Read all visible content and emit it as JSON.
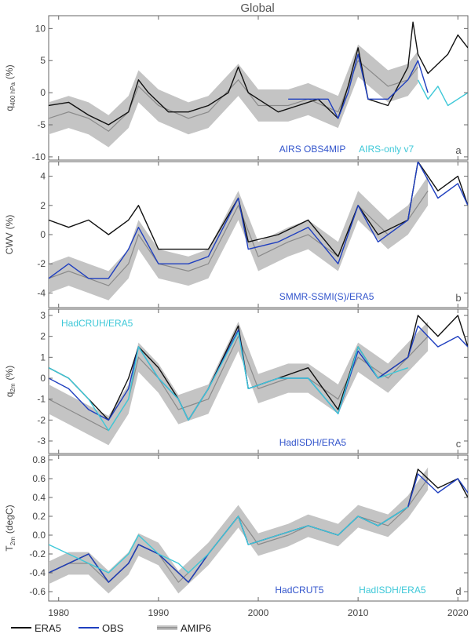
{
  "figure": {
    "title": "Global"
  },
  "colors": {
    "ERA5": "#111111",
    "OBS": "#1f3fbf",
    "OBS2": "#3ec8d8",
    "AMIP6": "#9a9a9a",
    "frame": "#666666"
  },
  "legend": [
    {
      "label": "ERA5",
      "color": "#111111",
      "style": "line"
    },
    {
      "label": "OBS",
      "color": "#1f3fbf",
      "style": "line"
    },
    {
      "label": "AMIP6",
      "color": "#9a9a9a",
      "style": "band"
    }
  ],
  "chart_data": [
    {
      "type": "line",
      "letter": "a",
      "ylabel_main": "q",
      "ylabel_sub": "400 hPa",
      "ylabel_unit": "(%)",
      "ylim": [
        -10.5,
        12
      ],
      "yticks": [
        -10,
        -5,
        0,
        5,
        10
      ],
      "xlim": [
        1979,
        2021
      ],
      "xticks": [
        1980,
        1990,
        2000,
        2010,
        2020
      ],
      "annotations": [
        {
          "text": "AIRS OBS4MIP",
          "color": "#3355cc",
          "pos": "bottom-mid"
        },
        {
          "text": "AIRS-only v7",
          "color": "#3ec8d8",
          "pos": "bottom-right"
        }
      ],
      "series": [
        {
          "name": "ERA5",
          "color": "#111111",
          "x": [
            1979,
            1981,
            1983,
            1985,
            1987,
            1988,
            1989,
            1991,
            1993,
            1995,
            1997,
            1998,
            1999,
            2000,
            2002,
            2004,
            2006,
            2008,
            2009,
            2010,
            2011,
            2013,
            2015,
            2015.5,
            2016,
            2017,
            2019,
            2020,
            2021
          ],
          "y": [
            -2,
            -1.5,
            -3.5,
            -5,
            -3,
            2,
            0,
            -3,
            -3,
            -2,
            0,
            4,
            0,
            -1,
            -3,
            -2,
            -1,
            -4,
            1,
            7,
            -1,
            -2,
            4,
            11,
            6,
            3,
            6,
            9,
            7
          ]
        },
        {
          "name": "OBS",
          "color": "#1f3fbf",
          "x": [
            2003,
            2005,
            2007,
            2008,
            2009,
            2010,
            2011,
            2013,
            2015,
            2016,
            2017
          ],
          "y": [
            -1,
            -1,
            -1,
            -4,
            0,
            6,
            -1,
            -1,
            2,
            5,
            0
          ]
        },
        {
          "name": "OBS2",
          "color": "#3ec8d8",
          "x": [
            2016,
            2017,
            2018,
            2019,
            2020,
            2021
          ],
          "y": [
            2,
            -1,
            1,
            -2,
            -1,
            0
          ]
        },
        {
          "name": "AMIP6",
          "color": "#9a9a9a",
          "band": 2.5,
          "x": [
            1979,
            1981,
            1983,
            1985,
            1987,
            1988,
            1990,
            1993,
            1995,
            1998,
            2000,
            2003,
            2005,
            2008,
            2010,
            2013,
            2015,
            2016
          ],
          "y": [
            -4,
            -3,
            -4,
            -6,
            -3,
            1,
            -2,
            -4,
            -3,
            2,
            -2,
            -2,
            -1,
            -3,
            5,
            1,
            2,
            4
          ]
        }
      ]
    },
    {
      "type": "line",
      "letter": "b",
      "ylabel_main": "CWV",
      "ylabel_sub": "",
      "ylabel_unit": "(%)",
      "ylim": [
        -5,
        5
      ],
      "yticks": [
        -4,
        -2,
        0,
        2,
        4
      ],
      "xlim": [
        1979,
        2021
      ],
      "xticks": [
        1980,
        1990,
        2000,
        2010,
        2020
      ],
      "annotations": [
        {
          "text": "SMMR-SSMI(S)/ERA5",
          "color": "#3355cc",
          "pos": "bottom-mid"
        }
      ],
      "series": [
        {
          "name": "ERA5",
          "color": "#111111",
          "x": [
            1979,
            1981,
            1983,
            1985,
            1987,
            1988,
            1990,
            1993,
            1995,
            1998,
            1999,
            2002,
            2005,
            2008,
            2010,
            2012,
            2015,
            2016,
            2018,
            2020,
            2021
          ],
          "y": [
            1,
            0.5,
            1,
            0,
            1,
            2,
            -1,
            -1,
            -1,
            2.5,
            -0.5,
            0,
            1,
            -1.5,
            2,
            0,
            1,
            5,
            3,
            4,
            2
          ]
        },
        {
          "name": "OBS",
          "color": "#1f3fbf",
          "x": [
            1979,
            1981,
            1983,
            1985,
            1987,
            1988,
            1990,
            1993,
            1995,
            1998,
            1999,
            2002,
            2005,
            2008,
            2010,
            2012,
            2015,
            2016,
            2018,
            2020,
            2021
          ],
          "y": [
            -3,
            -2,
            -3,
            -3,
            -1,
            0.5,
            -2,
            -2,
            -1.5,
            2.5,
            -1,
            -0.5,
            0.5,
            -2,
            2,
            -0.5,
            1,
            5,
            2.5,
            3.5,
            2
          ]
        },
        {
          "name": "AMIP6",
          "color": "#9a9a9a",
          "band": 1.0,
          "x": [
            1979,
            1981,
            1983,
            1985,
            1987,
            1988,
            1990,
            1993,
            1995,
            1998,
            2000,
            2003,
            2005,
            2008,
            2010,
            2013,
            2015,
            2017
          ],
          "y": [
            -3,
            -2.5,
            -3,
            -3.5,
            -2,
            0,
            -2,
            -2.5,
            -2,
            2,
            -1.5,
            -0.5,
            0,
            -1.5,
            2,
            0,
            1,
            3
          ]
        }
      ]
    },
    {
      "type": "line",
      "letter": "c",
      "ylabel_main": "q",
      "ylabel_sub": "2m",
      "ylabel_unit": "(%)",
      "ylim": [
        -3.6,
        3.3
      ],
      "yticks": [
        -3,
        -2,
        -1,
        0,
        1,
        2,
        3
      ],
      "xlim": [
        1979,
        2021
      ],
      "xticks": [
        1980,
        1990,
        2000,
        2010,
        2020
      ],
      "annotations": [
        {
          "text": "HadCRUH/ERA5",
          "color": "#3ec8d8",
          "pos": "top-left"
        },
        {
          "text": "HadISDH/ERA5",
          "color": "#3355cc",
          "pos": "bottom-mid"
        }
      ],
      "series": [
        {
          "name": "ERA5",
          "color": "#111111",
          "x": [
            1979,
            1981,
            1983,
            1985,
            1987,
            1988,
            1990,
            1992,
            1993,
            1995,
            1998,
            1999,
            2002,
            2005,
            2008,
            2010,
            2012,
            2015,
            2016,
            2018,
            2020,
            2021
          ],
          "y": [
            0.5,
            0,
            -1,
            -2,
            0,
            1.5,
            0.5,
            -1,
            -2,
            -0.5,
            2.5,
            -0.5,
            0,
            0.5,
            -1.5,
            1.5,
            0,
            1,
            3,
            2,
            3,
            1.5
          ]
        },
        {
          "name": "OBS",
          "color": "#1f3fbf",
          "x": [
            1979,
            1981,
            1983,
            1985,
            1987,
            1988,
            1990,
            1992,
            1993,
            1995,
            1998,
            1999,
            2002,
            2005,
            2008,
            2010,
            2012,
            2015,
            2016,
            2018,
            2020,
            2021
          ],
          "y": [
            0,
            -0.5,
            -1.5,
            -2,
            -0.5,
            1.5,
            0,
            -1,
            -2,
            -0.5,
            2.3,
            -0.5,
            0,
            0,
            -1.7,
            1.3,
            0,
            1,
            2.5,
            1.5,
            2,
            1.5
          ]
        },
        {
          "name": "OBS2",
          "color": "#3ec8d8",
          "x": [
            1979,
            1981,
            1983,
            1985,
            1987,
            1988,
            1990,
            1992,
            1993,
            1995,
            1998,
            1999,
            2002,
            2005,
            2008,
            2010,
            2012,
            2015
          ],
          "y": [
            0.5,
            0,
            -1,
            -2.5,
            -1,
            1.5,
            0,
            -1,
            -2,
            -0.5,
            2.2,
            -0.5,
            0,
            0,
            -1.7,
            1.5,
            0,
            0.5
          ]
        },
        {
          "name": "AMIP6",
          "color": "#9a9a9a",
          "band": 0.7,
          "x": [
            1979,
            1981,
            1983,
            1985,
            1987,
            1988,
            1990,
            1992,
            1995,
            1998,
            2000,
            2003,
            2005,
            2008,
            2010,
            2013,
            2015,
            2017
          ],
          "y": [
            -1,
            -1.5,
            -2,
            -2.5,
            -1,
            1,
            0,
            -1.5,
            -1,
            2,
            -0.5,
            0,
            0,
            -1,
            1,
            0,
            1,
            2
          ]
        }
      ]
    },
    {
      "type": "line",
      "letter": "d",
      "ylabel_main": "T",
      "ylabel_sub": "2m",
      "ylabel_unit": "(degC)",
      "ylim": [
        -0.7,
        0.85
      ],
      "yticks": [
        -0.6,
        -0.4,
        -0.2,
        0.0,
        0.2,
        0.4,
        0.6,
        0.8
      ],
      "yticklabels": [
        "-0.6",
        "-0.4",
        "-0.2",
        "0.0",
        "0.2",
        "0.4",
        "0.6",
        "0.8"
      ],
      "xlim": [
        1979,
        2021
      ],
      "xticks": [
        1980,
        1990,
        2000,
        2010,
        2020
      ],
      "annotations": [
        {
          "text": "HadCRUT5",
          "color": "#3355cc",
          "pos": "bottom-mid"
        },
        {
          "text": "HadISDH/ERA5",
          "color": "#3ec8d8",
          "pos": "bottom-right"
        }
      ],
      "series": [
        {
          "name": "ERA5",
          "color": "#111111",
          "x": [
            1979,
            1981,
            1983,
            1985,
            1987,
            1988,
            1990,
            1992,
            1993,
            1995,
            1998,
            1999,
            2002,
            2005,
            2008,
            2010,
            2012,
            2015,
            2016,
            2018,
            2020,
            2021
          ],
          "y": [
            -0.4,
            -0.3,
            -0.2,
            -0.5,
            -0.3,
            -0.1,
            -0.2,
            -0.4,
            -0.5,
            -0.2,
            0.2,
            -0.1,
            0,
            0.1,
            0,
            0.2,
            0.1,
            0.3,
            0.7,
            0.5,
            0.6,
            0.4
          ]
        },
        {
          "name": "OBS",
          "color": "#1f3fbf",
          "x": [
            1979,
            1981,
            1983,
            1985,
            1987,
            1988,
            1990,
            1992,
            1993,
            1995,
            1998,
            1999,
            2002,
            2005,
            2008,
            2010,
            2012,
            2015,
            2016,
            2018,
            2020,
            2021
          ],
          "y": [
            -0.4,
            -0.3,
            -0.2,
            -0.5,
            -0.3,
            -0.1,
            -0.2,
            -0.4,
            -0.5,
            -0.2,
            0.2,
            -0.1,
            0,
            0.1,
            0,
            0.2,
            0.1,
            0.3,
            0.65,
            0.45,
            0.6,
            0.45
          ]
        },
        {
          "name": "OBS2",
          "color": "#3ec8d8",
          "x": [
            1979,
            1981,
            1983,
            1985,
            1987,
            1988,
            1990,
            1992,
            1993,
            1995,
            1998,
            1999,
            2002,
            2005,
            2008,
            2010,
            2012,
            2015
          ],
          "y": [
            -0.1,
            -0.2,
            -0.3,
            -0.4,
            -0.2,
            0,
            -0.2,
            -0.3,
            -0.4,
            -0.2,
            0.2,
            -0.1,
            0,
            0.1,
            0,
            0.2,
            0.1,
            0.3
          ]
        },
        {
          "name": "AMIP6",
          "color": "#9a9a9a",
          "band": 0.12,
          "x": [
            1979,
            1981,
            1983,
            1985,
            1987,
            1988,
            1990,
            1992,
            1995,
            1998,
            2000,
            2003,
            2005,
            2008,
            2010,
            2013,
            2015,
            2017
          ],
          "y": [
            -0.4,
            -0.3,
            -0.3,
            -0.5,
            -0.3,
            -0.1,
            -0.2,
            -0.5,
            -0.2,
            0.2,
            -0.1,
            0,
            0.1,
            0,
            0.2,
            0.1,
            0.3,
            0.6
          ]
        }
      ]
    }
  ]
}
